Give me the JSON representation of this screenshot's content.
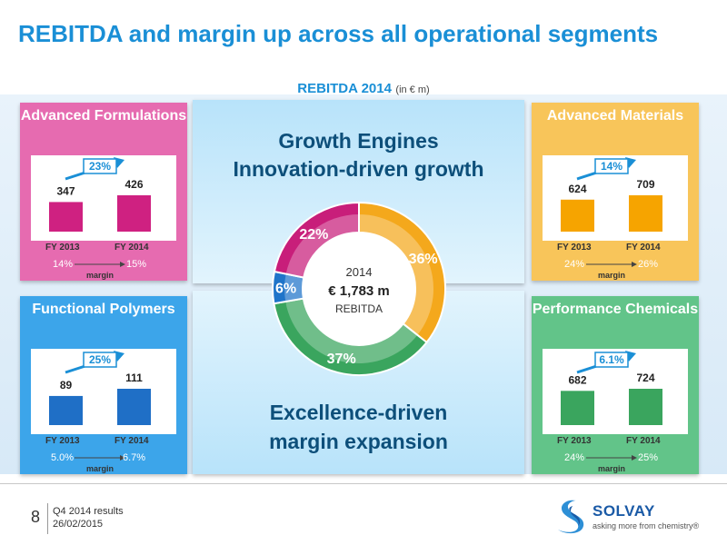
{
  "title": "REBITDA and margin up across all operational segments",
  "center": {
    "header": "REBITDA 2014",
    "unit": "(in € m)",
    "top_text_1": "Growth Engines",
    "top_text_2": "Innovation-driven growth",
    "bottom_text_1": "Excellence-driven",
    "bottom_text_2": "margin expansion",
    "donut_year": "2014",
    "donut_value": "€ 1,783 m",
    "donut_label": "REBITDA"
  },
  "margin_label": "margin",
  "footer": {
    "page": "8",
    "doc_title": "Q4 2014 results",
    "date": "26/02/2015",
    "logo": "SOLVAY",
    "tagline": "asking more from chemistry®"
  },
  "chart_data": [
    {
      "type": "pie",
      "title": "REBITDA 2014",
      "categories": [
        "Advanced Materials",
        "Performance Chemicals",
        "Functional Polymers",
        "Advanced Formulations"
      ],
      "values": [
        36,
        37,
        6,
        22
      ],
      "labels": [
        "36%",
        "37%",
        "6%",
        "22%"
      ],
      "colors": [
        "#f4a81c",
        "#3aa55e",
        "#1f74c9",
        "#c81e7a"
      ]
    },
    {
      "type": "bar",
      "title": "Advanced Formulations",
      "categories": [
        "FY 2013",
        "FY 2014"
      ],
      "values": [
        347,
        426
      ],
      "growth": "23%",
      "margins": [
        "14%",
        "15%"
      ],
      "color": "#cf2181",
      "panel_color": "#e66bb0"
    },
    {
      "type": "bar",
      "title": "Advanced Materials",
      "categories": [
        "FY 2013",
        "FY 2014"
      ],
      "values": [
        624,
        709
      ],
      "growth": "14%",
      "margins": [
        "24%",
        "26%"
      ],
      "color": "#f6a400",
      "panel_color": "#f8c55a"
    },
    {
      "type": "bar",
      "title": "Functional Polymers",
      "categories": [
        "FY 2013",
        "FY 2014"
      ],
      "values": [
        89,
        111
      ],
      "growth": "25%",
      "margins": [
        "5.0%",
        "6.7%"
      ],
      "color": "#1f6fc6",
      "panel_color": "#3ca5ea"
    },
    {
      "type": "bar",
      "title": "Performance Chemicals",
      "categories": [
        "FY 2013",
        "FY 2014"
      ],
      "values": [
        682,
        724
      ],
      "growth": "6.1%",
      "margins": [
        "24%",
        "25%"
      ],
      "color": "#3aa55e",
      "panel_color": "#62c489"
    }
  ]
}
